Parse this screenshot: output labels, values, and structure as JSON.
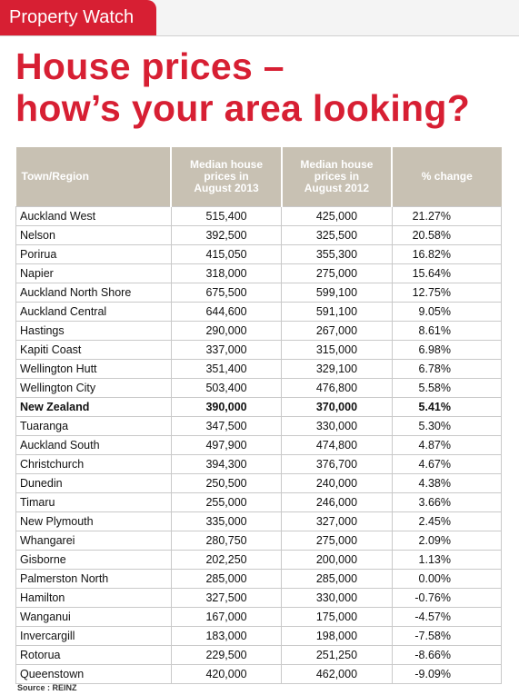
{
  "header": {
    "tag": "Property Watch",
    "title_lines": [
      "House prices –",
      "how’s your area looking?"
    ]
  },
  "table": {
    "columns": [
      "Town/Region",
      "Median house prices in August 2013",
      "Median house prices in August 2012",
      "% change"
    ],
    "highlight_row": 10,
    "rows": [
      [
        "Auckland West",
        "515,400",
        "425,000",
        "21.27%"
      ],
      [
        "Nelson",
        "392,500",
        "325,500",
        "20.58%"
      ],
      [
        "Porirua",
        "415,050",
        "355,300",
        "16.82%"
      ],
      [
        "Napier",
        "318,000",
        "275,000",
        "15.64%"
      ],
      [
        "Auckland North Shore",
        "675,500",
        "599,100",
        "12.75%"
      ],
      [
        "Auckland Central",
        "644,600",
        "591,100",
        "9.05%"
      ],
      [
        "Hastings",
        "290,000",
        "267,000",
        "8.61%"
      ],
      [
        "Kapiti Coast",
        "337,000",
        "315,000",
        "6.98%"
      ],
      [
        "Wellington Hutt",
        "351,400",
        "329,100",
        "6.78%"
      ],
      [
        "Wellington City",
        "503,400",
        "476,800",
        "5.58%"
      ],
      [
        "New Zealand",
        "390,000",
        "370,000",
        "5.41%"
      ],
      [
        "Tuaranga",
        "347,500",
        "330,000",
        "5.30%"
      ],
      [
        "Auckland South",
        "497,900",
        "474,800",
        "4.87%"
      ],
      [
        "Christchurch",
        "394,300",
        "376,700",
        "4.67%"
      ],
      [
        "Dunedin",
        "250,500",
        "240,000",
        "4.38%"
      ],
      [
        "Timaru",
        "255,000",
        "246,000",
        "3.66%"
      ],
      [
        "New Plymouth",
        "335,000",
        "327,000",
        "2.45%"
      ],
      [
        "Whangarei",
        "280,750",
        "275,000",
        "2.09%"
      ],
      [
        "Gisborne",
        "202,250",
        "200,000",
        "1.13%"
      ],
      [
        "Palmerston North",
        "285,000",
        "285,000",
        "0.00%"
      ],
      [
        "Hamilton",
        "327,500",
        "330,000",
        "-0.76%"
      ],
      [
        "Wanganui",
        "167,000",
        "175,000",
        "-4.57%"
      ],
      [
        "Invercargill",
        "183,000",
        "198,000",
        "-7.58%"
      ],
      [
        "Rotorua",
        "229,500",
        "251,250",
        "-8.66%"
      ],
      [
        "Queenstown",
        "420,000",
        "462,000",
        "-9.09%"
      ]
    ]
  },
  "source": "Source : REINZ"
}
